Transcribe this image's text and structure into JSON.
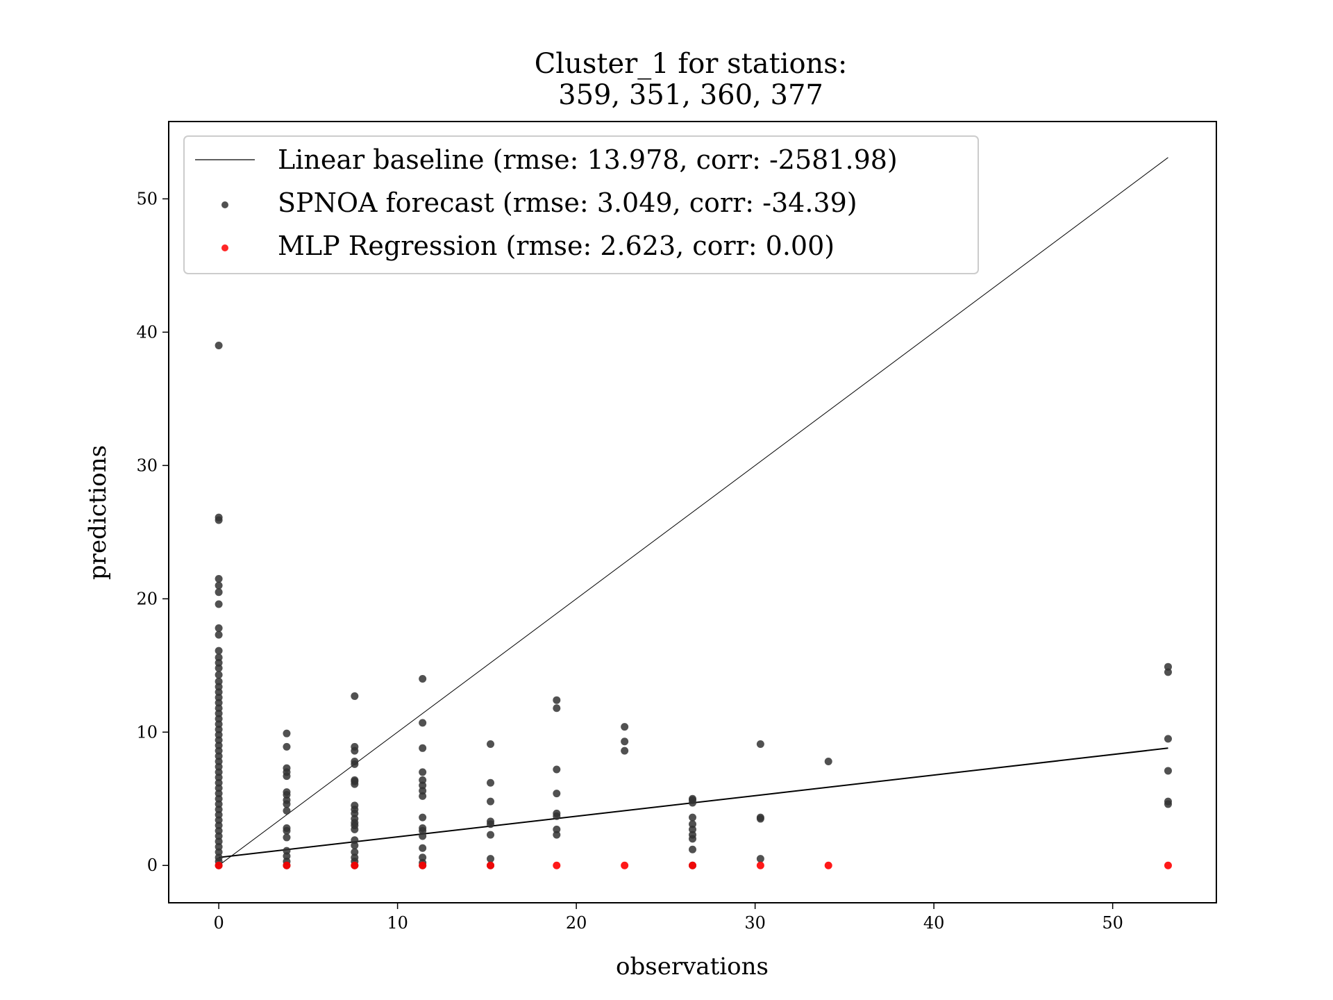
{
  "chart_data": {
    "type": "scatter",
    "title_lines": [
      "Cluster_1 for stations:",
      "359, 351, 360, 377"
    ],
    "xlabel": "observations",
    "ylabel": "predictions",
    "xlim": [
      -2.8,
      55.8
    ],
    "ylim": [
      -2.8,
      55.8
    ],
    "xticks": [
      0,
      10,
      20,
      30,
      40,
      50
    ],
    "yticks": [
      0,
      10,
      20,
      30,
      40,
      50
    ],
    "grid": false,
    "legend_position": "top-left",
    "series": [
      {
        "name": "Linear baseline (rmse: 13.978, corr: -2581.98)",
        "kind": "line",
        "color": "#000000",
        "x": [
          0.1,
          53.1
        ],
        "y": [
          0.1,
          53.1
        ]
      },
      {
        "name": "SPNOA forecast (rmse: 3.049, corr: -34.39)",
        "kind": "scatter",
        "color": "#333333",
        "points": [
          [
            0,
            0
          ],
          [
            0,
            0.3
          ],
          [
            0,
            0.6
          ],
          [
            0,
            1
          ],
          [
            0,
            1.4
          ],
          [
            0,
            1.8
          ],
          [
            0,
            2.2
          ],
          [
            0,
            2.6
          ],
          [
            0,
            3
          ],
          [
            0,
            3.4
          ],
          [
            0,
            3.8
          ],
          [
            0,
            4.2
          ],
          [
            0,
            4.6
          ],
          [
            0,
            5
          ],
          [
            0,
            5.4
          ],
          [
            0,
            5.8
          ],
          [
            0,
            6.2
          ],
          [
            0,
            6.6
          ],
          [
            0,
            7
          ],
          [
            0,
            7.4
          ],
          [
            0,
            7.8
          ],
          [
            0,
            8.2
          ],
          [
            0,
            8.6
          ],
          [
            0,
            9
          ],
          [
            0,
            9.4
          ],
          [
            0,
            9.8
          ],
          [
            0,
            10.2
          ],
          [
            0,
            10.6
          ],
          [
            0,
            11
          ],
          [
            0,
            11.4
          ],
          [
            0,
            11.8
          ],
          [
            0,
            12.2
          ],
          [
            0,
            12.6
          ],
          [
            0,
            13
          ],
          [
            0,
            13.4
          ],
          [
            0,
            13.8
          ],
          [
            0,
            14.3
          ],
          [
            0,
            14.8
          ],
          [
            0,
            15.2
          ],
          [
            0,
            15.6
          ],
          [
            0,
            16.1
          ],
          [
            0,
            17.3
          ],
          [
            0,
            17.8
          ],
          [
            0,
            19.6
          ],
          [
            0,
            20.5
          ],
          [
            0,
            21
          ],
          [
            0,
            21.5
          ],
          [
            0,
            25.9
          ],
          [
            0,
            26.1
          ],
          [
            0,
            39
          ],
          [
            3.8,
            0
          ],
          [
            3.8,
            0.3
          ],
          [
            3.8,
            0.7
          ],
          [
            3.8,
            1.1
          ],
          [
            3.8,
            2.1
          ],
          [
            3.8,
            2.6
          ],
          [
            3.8,
            2.8
          ],
          [
            3.8,
            4.1
          ],
          [
            3.8,
            4.6
          ],
          [
            3.8,
            4.9
          ],
          [
            3.8,
            5.3
          ],
          [
            3.8,
            5.5
          ],
          [
            3.8,
            6.7
          ],
          [
            3.8,
            7
          ],
          [
            3.8,
            7.3
          ],
          [
            3.8,
            8.9
          ],
          [
            3.8,
            9.9
          ],
          [
            7.6,
            0
          ],
          [
            7.6,
            0.3
          ],
          [
            7.6,
            0.6
          ],
          [
            7.6,
            1
          ],
          [
            7.6,
            1.5
          ],
          [
            7.6,
            1.9
          ],
          [
            7.6,
            2.7
          ],
          [
            7.6,
            3
          ],
          [
            7.6,
            3.2
          ],
          [
            7.6,
            3.5
          ],
          [
            7.6,
            3.9
          ],
          [
            7.6,
            4.2
          ],
          [
            7.6,
            4.5
          ],
          [
            7.6,
            6.1
          ],
          [
            7.6,
            6.3
          ],
          [
            7.6,
            6.4
          ],
          [
            7.6,
            7.6
          ],
          [
            7.6,
            7.8
          ],
          [
            7.6,
            8.6
          ],
          [
            7.6,
            8.9
          ],
          [
            7.6,
            12.7
          ],
          [
            11.4,
            0
          ],
          [
            11.4,
            0.2
          ],
          [
            11.4,
            0.6
          ],
          [
            11.4,
            1.3
          ],
          [
            11.4,
            2.2
          ],
          [
            11.4,
            2.6
          ],
          [
            11.4,
            2.8
          ],
          [
            11.4,
            3.6
          ],
          [
            11.4,
            5.2
          ],
          [
            11.4,
            5.6
          ],
          [
            11.4,
            6
          ],
          [
            11.4,
            6.4
          ],
          [
            11.4,
            7
          ],
          [
            11.4,
            8.8
          ],
          [
            11.4,
            10.7
          ],
          [
            11.4,
            14
          ],
          [
            15.2,
            0
          ],
          [
            15.2,
            0.5
          ],
          [
            15.2,
            2.3
          ],
          [
            15.2,
            3.1
          ],
          [
            15.2,
            3.3
          ],
          [
            15.2,
            4.8
          ],
          [
            15.2,
            6.2
          ],
          [
            15.2,
            9.1
          ],
          [
            18.9,
            2.3
          ],
          [
            18.9,
            2.7
          ],
          [
            18.9,
            3.7
          ],
          [
            18.9,
            3.9
          ],
          [
            18.9,
            5.4
          ],
          [
            18.9,
            7.2
          ],
          [
            18.9,
            11.8
          ],
          [
            18.9,
            12.4
          ],
          [
            22.7,
            8.6
          ],
          [
            22.7,
            9.3
          ],
          [
            22.7,
            10.4
          ],
          [
            26.5,
            0
          ],
          [
            26.5,
            1.2
          ],
          [
            26.5,
            2
          ],
          [
            26.5,
            2.3
          ],
          [
            26.5,
            2.7
          ],
          [
            26.5,
            3.1
          ],
          [
            26.5,
            3.6
          ],
          [
            26.5,
            4.7
          ],
          [
            26.5,
            4.9
          ],
          [
            26.5,
            5
          ],
          [
            30.3,
            0.5
          ],
          [
            30.3,
            3.5
          ],
          [
            30.3,
            3.6
          ],
          [
            30.3,
            9.1
          ],
          [
            34.1,
            7.8
          ],
          [
            53.1,
            4.6
          ],
          [
            53.1,
            4.8
          ],
          [
            53.1,
            7.1
          ],
          [
            53.1,
            9.5
          ],
          [
            53.1,
            14.5
          ],
          [
            53.1,
            14.9
          ]
        ]
      },
      {
        "name": "MLP Regression (rmse: 2.623, corr: 0.00)",
        "kind": "scatter",
        "color": "#ff0000",
        "x": [
          0,
          3.8,
          7.6,
          11.4,
          15.2,
          18.9,
          22.7,
          26.5,
          30.3,
          34.1,
          53.1
        ],
        "y": [
          0,
          0,
          0,
          0,
          0,
          0,
          0,
          0,
          0,
          0,
          0
        ]
      }
    ],
    "fit_line": {
      "color": "#000000",
      "x": [
        0,
        53.1
      ],
      "y": [
        0.6,
        8.8
      ]
    }
  }
}
